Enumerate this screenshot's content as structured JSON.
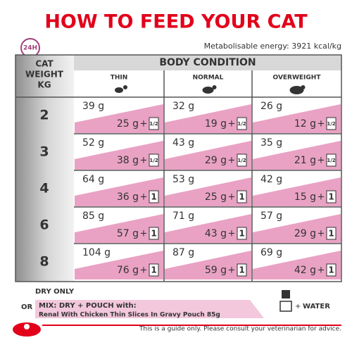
{
  "header": {
    "title": "HOW TO FEED YOUR CAT",
    "badge": "24H",
    "energy": "Metabolisable energy: 3921 kcal/kg"
  },
  "table": {
    "weight_header": [
      "CAT",
      "WEIGHT",
      "KG"
    ],
    "condition_header": "BODY CONDITION",
    "columns": [
      "THIN",
      "NORMAL",
      "OVERWEIGHT"
    ],
    "plus": "+",
    "rows": [
      {
        "weight": "2",
        "cells": [
          {
            "dry": "39 g",
            "mix": "25 g",
            "pouch": "1/2"
          },
          {
            "dry": "32 g",
            "mix": "19 g",
            "pouch": "1/2"
          },
          {
            "dry": "26 g",
            "mix": "12 g",
            "pouch": "1/2"
          }
        ]
      },
      {
        "weight": "3",
        "cells": [
          {
            "dry": "52 g",
            "mix": "38 g",
            "pouch": "1/2"
          },
          {
            "dry": "43 g",
            "mix": "29 g",
            "pouch": "1/2"
          },
          {
            "dry": "35 g",
            "mix": "21 g",
            "pouch": "1/2"
          }
        ]
      },
      {
        "weight": "4",
        "cells": [
          {
            "dry": "64 g",
            "mix": "36 g",
            "pouch": "1"
          },
          {
            "dry": "53 g",
            "mix": "25 g",
            "pouch": "1"
          },
          {
            "dry": "42 g",
            "mix": "15 g",
            "pouch": "1"
          }
        ]
      },
      {
        "weight": "6",
        "cells": [
          {
            "dry": "85 g",
            "mix": "57 g",
            "pouch": "1"
          },
          {
            "dry": "71 g",
            "mix": "43 g",
            "pouch": "1"
          },
          {
            "dry": "57 g",
            "mix": "29 g",
            "pouch": "1"
          }
        ]
      },
      {
        "weight": "8",
        "cells": [
          {
            "dry": "104 g",
            "mix": "76 g",
            "pouch": "1"
          },
          {
            "dry": "87 g",
            "mix": "59 g",
            "pouch": "1"
          },
          {
            "dry": "69 g",
            "mix": "42 g",
            "pouch": "1"
          }
        ]
      }
    ]
  },
  "footer": {
    "dry_only": "DRY ONLY",
    "or": "OR",
    "mix": "MIX: DRY + POUCH with:",
    "product": "Renal With Chicken Thin Slices In Gravy Pouch 85g",
    "water": "WATER",
    "disclaimer": "This is a guide only. Please consult your veterinarian for advice."
  }
}
